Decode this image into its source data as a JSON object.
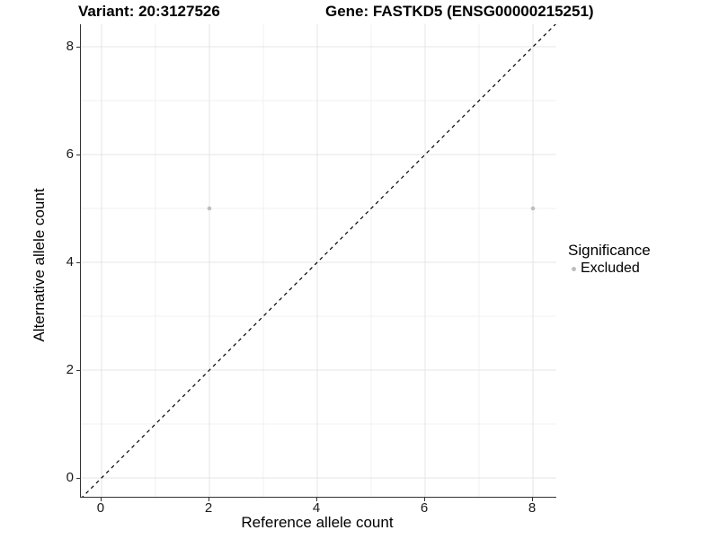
{
  "header": {
    "variant_label": "Variant: 20:3127526",
    "gene_label": "Gene: FASTKD5 (ENSG00000215251)"
  },
  "chart_data": {
    "type": "scatter",
    "titles": [
      "Variant: 20:3127526",
      "Gene: FASTKD5 (ENSG00000215251)"
    ],
    "xlabel": "Reference allele count",
    "ylabel": "Alternative allele count",
    "xlim": [
      -0.383,
      8.433
    ],
    "ylim": [
      -0.35,
      8.417
    ],
    "x_major_ticks": [
      0,
      2,
      4,
      6,
      8
    ],
    "x_minor_ticks": [
      1,
      3,
      5,
      7
    ],
    "y_major_ticks": [
      0,
      2,
      4,
      6,
      8
    ],
    "y_minor_ticks": [
      1,
      3,
      5,
      7
    ],
    "grid": true,
    "identity_line": {
      "equation": "y = x",
      "style": "dashed",
      "color": "#000000"
    },
    "series": [
      {
        "name": "Excluded",
        "color": "#bebebe",
        "points": [
          {
            "x": 2,
            "y": 5
          },
          {
            "x": 8,
            "y": 5
          }
        ]
      }
    ],
    "legend": {
      "title": "Significance",
      "position": "right",
      "entries": [
        {
          "label": "Excluded",
          "color": "#bebebe"
        }
      ]
    }
  },
  "colors": {
    "grid_major": "#e4e4e4",
    "grid_minor": "#f0f0f0",
    "axis_line": "#333333",
    "point": "#bebebe",
    "text": "#000000"
  }
}
